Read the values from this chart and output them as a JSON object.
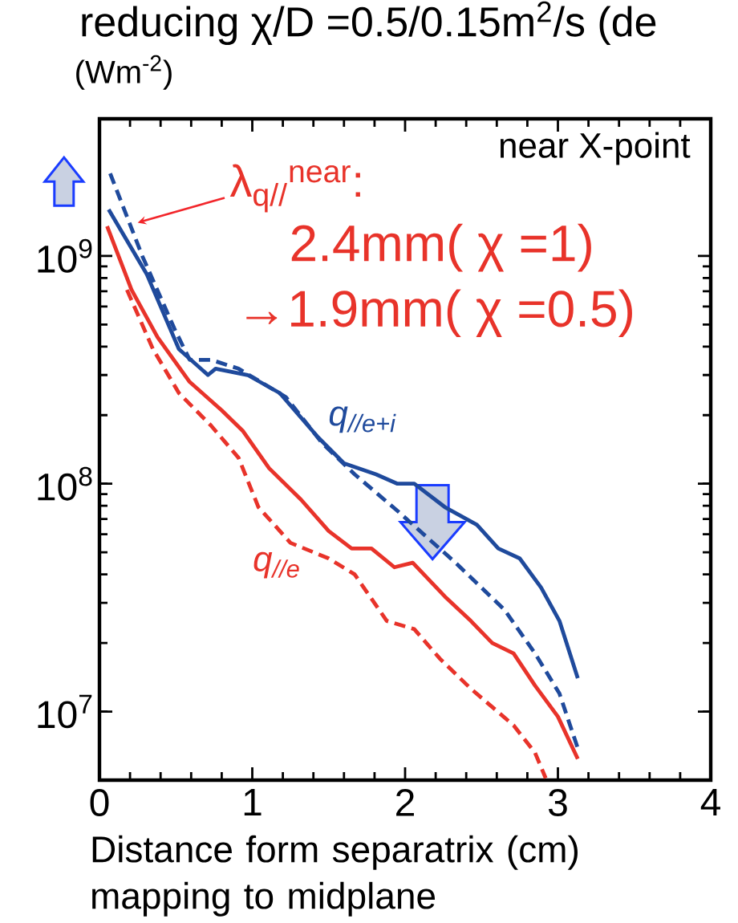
{
  "chart_data": {
    "type": "line",
    "title": "reducing χ/D =0.5/0.15m$^{2}$/s (de",
    "ylabel": "(Wm$^{-2}$)",
    "xlabel": "Distance form separatrix (cm) mapping to midplane",
    "log": "y",
    "xlim": [
      0,
      4
    ],
    "ylim": [
      5000000,
      4000000000
    ],
    "xticks": [
      0,
      1,
      2,
      3,
      4
    ],
    "yticks": [
      {
        "value": 10000000,
        "label": "10$^{7}$"
      },
      {
        "value": 100000000,
        "label": "10$^{8}$"
      },
      {
        "value": 1000000000,
        "label": "10$^{9}$"
      }
    ],
    "marker": "none",
    "annotations": [
      "near X-point",
      {
        "text": "λ$_{q//}$$^{near}$:",
        "x": 0.25,
        "y": 1400000000
      },
      "2.4mm( χ =1)",
      "→1.9mm( χ =0.5)"
    ],
    "series": [
      {
        "name": "q$_{//e+i}$",
        "color": "#1f4a9c",
        "line_style": "solid",
        "x": [
          0.06,
          0.31,
          0.52,
          0.71,
          0.76,
          0.97,
          1.18,
          1.43,
          1.6,
          1.81,
          1.95,
          2.06,
          2.26,
          2.47,
          2.61,
          2.75,
          2.89,
          3.01,
          3.13
        ],
        "values": [
          1600000000,
          830000000,
          390000000,
          300000000,
          320000000,
          300000000,
          250000000,
          160000000,
          123000000,
          110000000,
          100000000,
          100000000,
          79000000,
          66000000,
          52000000,
          47000000,
          35000000,
          25000000,
          14000000
        ]
      },
      {
        "color": "#1f4a9c",
        "line_style": "dashed",
        "x": [
          0.07,
          0.28,
          0.49,
          0.59,
          0.73,
          0.91,
          1.22,
          1.46,
          1.67,
          1.95,
          2.33,
          2.65,
          2.85,
          3.01,
          3.13
        ],
        "values": [
          2300000000,
          1000000000,
          480000000,
          350000000,
          350000000,
          320000000,
          240000000,
          150000000,
          110000000,
          76000000,
          45000000,
          28000000,
          18000000,
          12000000,
          6900000
        ]
      },
      {
        "name": "q$_{//e}$",
        "color": "#e8332a",
        "line_style": "solid",
        "x": [
          0.05,
          0.21,
          0.38,
          0.59,
          0.8,
          0.94,
          1.11,
          1.32,
          1.5,
          1.65,
          1.78,
          1.93,
          2.05,
          2.26,
          2.43,
          2.57,
          2.71,
          2.85,
          3.0,
          3.13
        ],
        "values": [
          1350000000,
          710000000,
          440000000,
          280000000,
          210000000,
          170000000,
          117000000,
          85000000,
          62000000,
          52000000,
          52000000,
          43000000,
          45000000,
          32000000,
          25000000,
          20000000,
          18000000,
          13000000,
          9500000,
          6200000
        ]
      },
      {
        "color": "#e8332a",
        "line_style": "dashed",
        "x": [
          0.18,
          0.35,
          0.52,
          0.73,
          0.91,
          1.04,
          1.25,
          1.5,
          1.67,
          1.88,
          2.06,
          2.23,
          2.43,
          2.71,
          2.85,
          2.92
        ],
        "values": [
          710000000,
          390000000,
          250000000,
          180000000,
          130000000,
          79000000,
          55000000,
          47000000,
          40000000,
          25000000,
          23000000,
          17000000,
          12600000,
          8700000,
          6600000,
          5100000
        ]
      }
    ]
  }
}
